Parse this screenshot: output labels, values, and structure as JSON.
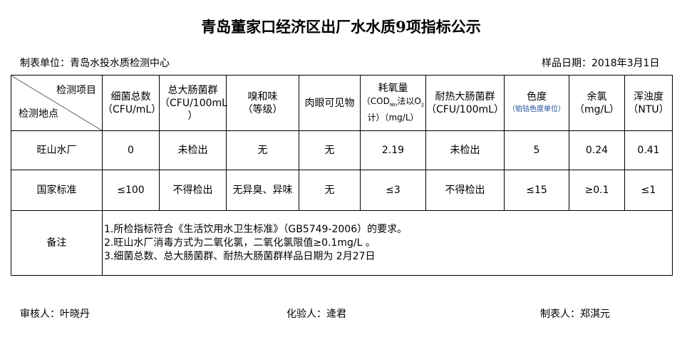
{
  "title": "青岛董家口经济区出厂水水质9项指标公示",
  "unit": "制表单位：青岛水投水质检测中心",
  "date": "样品日期：2018年3月1日",
  "header": {
    "item": "检测项目",
    "site": "检测地点",
    "cols": [
      {
        "l1": "细菌总数",
        "l2": "（CFU/mL）"
      },
      {
        "l1": "总大肠菌群",
        "l2": "（CFU/100mL",
        "l3": "）"
      },
      {
        "l1": "嗅和味",
        "l2": "（等级）"
      },
      {
        "l1": "肉眼可见物"
      },
      {
        "l1": "耗氧量",
        "l2": "（COD",
        "sub": "Mn",
        "l2b": "法以O",
        "sub2": "2",
        "l3": "计）（mg/L）"
      },
      {
        "l1": "耐热大肠菌群",
        "l2": "（CFU/100mL）"
      },
      {
        "l1": "色度",
        "l2": "（铂钴色度单位）"
      },
      {
        "l1": "余氯",
        "l2": "（mg/L）"
      },
      {
        "l1": "浑浊度",
        "l2": "（NTU）"
      }
    ]
  },
  "rows": [
    {
      "site": "旺山水厂",
      "values": [
        "0",
        "未检出",
        "无",
        "无",
        "2.19",
        "未检出",
        "5",
        "0.24",
        "0.41"
      ]
    },
    {
      "site": "国家标准",
      "values": [
        "≤100",
        "不得检出",
        "无异臭、异味",
        "无",
        "≤3",
        "不得检出",
        "≤15",
        "≥0.1",
        "≤1"
      ]
    }
  ],
  "remark": {
    "label": "备注",
    "lines": [
      "1.所检指标符合《生活饮用水卫生标准》（GB5749-2006）的要求。",
      "2.旺山水厂消毒方式为二氧化氯，二氧化氯限值≥0.1mg/L 。",
      "3.细菌总数、总大肠菌群、耐热大肠菌群样品日期为 2月27日"
    ]
  },
  "footer": {
    "reviewer": "审核人：叶晓丹",
    "tester": "化验人：逄君",
    "maker": "制表人：郑淇元"
  }
}
